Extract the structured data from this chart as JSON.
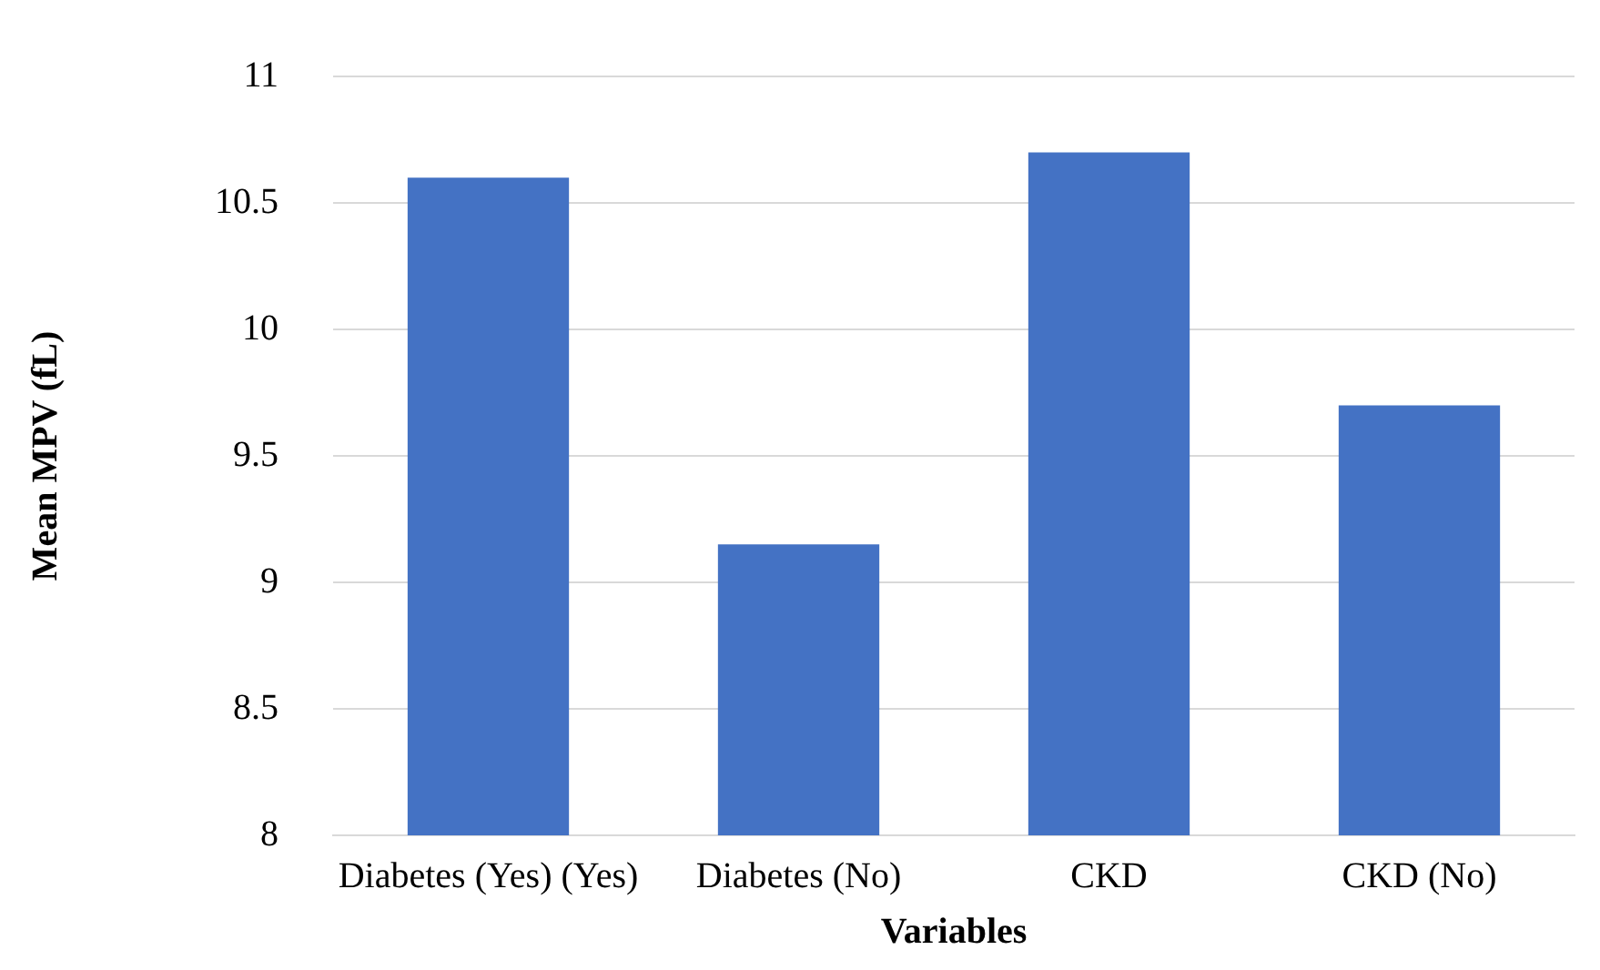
{
  "chart_data": {
    "type": "bar",
    "xlabel": "Variables",
    "ylabel": "Mean MPV (fL)",
    "categories": [
      "Diabetes (Yes) (Yes)",
      "Diabetes (No)",
      "CKD",
      "CKD (No)"
    ],
    "values": [
      10.6,
      9.15,
      10.7,
      9.7
    ],
    "color": "#4472c4",
    "ylim": [
      8,
      11
    ],
    "yticks": [
      8,
      8.5,
      9,
      9.5,
      10,
      10.5,
      11
    ],
    "grid": "y"
  }
}
